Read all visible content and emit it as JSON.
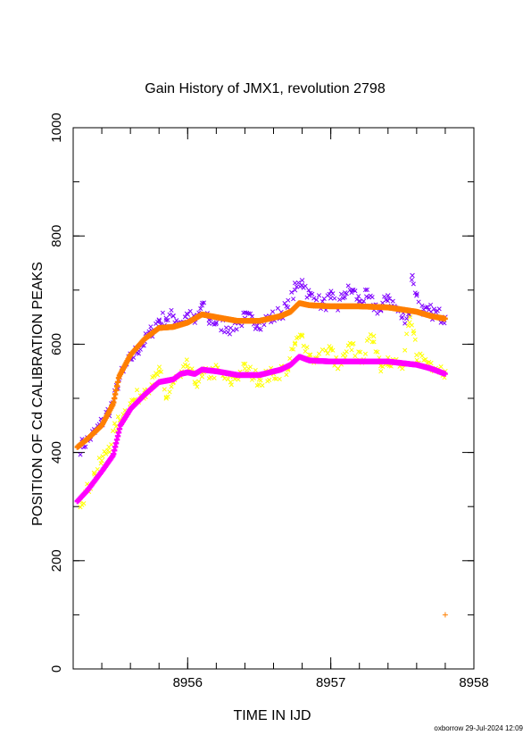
{
  "chart_data": {
    "type": "scatter",
    "title": "Gain History of JMX1, revolution 2798",
    "xlabel": "TIME IN IJD",
    "ylabel": "POSITION OF Cd CALIBRATION PEAKS",
    "xlim": [
      8955.2,
      8958
    ],
    "ylim": [
      0,
      1000
    ],
    "xticks": [
      8956,
      8957,
      8958
    ],
    "yticks": [
      0,
      200,
      400,
      600,
      800,
      1000
    ],
    "x_minor_step": 0.2,
    "y_minor_step": 100,
    "grid": false,
    "series": [
      {
        "marker": "x",
        "color": "#7f00ff",
        "scatter_band": true,
        "points": [
          [
            8955.25,
            410
          ],
          [
            8955.3,
            422
          ],
          [
            8955.35,
            437
          ],
          [
            8955.4,
            455
          ],
          [
            8955.45,
            478
          ],
          [
            8955.48,
            492
          ],
          [
            8955.52,
            535
          ],
          [
            8955.55,
            550
          ],
          [
            8955.6,
            572
          ],
          [
            8955.65,
            590
          ],
          [
            8955.7,
            605
          ],
          [
            8955.75,
            625
          ],
          [
            8955.8,
            645
          ],
          [
            8955.85,
            648
          ],
          [
            8955.9,
            652
          ],
          [
            8955.95,
            640
          ],
          [
            8956.0,
            655
          ],
          [
            8956.05,
            640
          ],
          [
            8956.1,
            672
          ],
          [
            8956.15,
            645
          ],
          [
            8956.2,
            640
          ],
          [
            8956.3,
            630
          ],
          [
            8956.4,
            648
          ],
          [
            8956.5,
            640
          ],
          [
            8956.6,
            650
          ],
          [
            8956.7,
            668
          ],
          [
            8956.75,
            700
          ],
          [
            8956.8,
            718
          ],
          [
            8956.85,
            690
          ],
          [
            8956.9,
            682
          ],
          [
            8956.95,
            672
          ],
          [
            8957.0,
            685
          ],
          [
            8957.05,
            670
          ],
          [
            8957.1,
            695
          ],
          [
            8957.15,
            700
          ],
          [
            8957.2,
            680
          ],
          [
            8957.25,
            688
          ],
          [
            8957.3,
            672
          ],
          [
            8957.35,
            662
          ],
          [
            8957.4,
            690
          ],
          [
            8957.45,
            668
          ],
          [
            8957.5,
            650
          ],
          [
            8957.55,
            655
          ],
          [
            8957.57,
            727
          ],
          [
            8957.6,
            690
          ],
          [
            8957.65,
            655
          ],
          [
            8957.7,
            660
          ],
          [
            8957.8,
            650
          ]
        ]
      },
      {
        "marker": "x",
        "color": "#ffff00",
        "scatter_band": true,
        "points": [
          [
            8955.25,
            310
          ],
          [
            8955.3,
            330
          ],
          [
            8955.35,
            360
          ],
          [
            8955.4,
            385
          ],
          [
            8955.45,
            410
          ],
          [
            8955.5,
            448
          ],
          [
            8955.55,
            470
          ],
          [
            8955.6,
            490
          ],
          [
            8955.7,
            515
          ],
          [
            8955.75,
            525
          ],
          [
            8955.8,
            550
          ],
          [
            8955.85,
            500
          ],
          [
            8955.9,
            530
          ],
          [
            8955.95,
            540
          ],
          [
            8956.0,
            560
          ],
          [
            8956.05,
            530
          ],
          [
            8956.1,
            540
          ],
          [
            8956.2,
            550
          ],
          [
            8956.3,
            530
          ],
          [
            8956.4,
            555
          ],
          [
            8956.5,
            535
          ],
          [
            8956.6,
            545
          ],
          [
            8956.7,
            555
          ],
          [
            8956.75,
            600
          ],
          [
            8956.8,
            615
          ],
          [
            8956.85,
            580
          ],
          [
            8956.9,
            570
          ],
          [
            8957.0,
            590
          ],
          [
            8957.05,
            555
          ],
          [
            8957.1,
            575
          ],
          [
            8957.15,
            600
          ],
          [
            8957.2,
            570
          ],
          [
            8957.3,
            615
          ],
          [
            8957.35,
            560
          ],
          [
            8957.4,
            575
          ],
          [
            8957.5,
            555
          ],
          [
            8957.55,
            640
          ],
          [
            8957.58,
            620
          ],
          [
            8957.6,
            580
          ],
          [
            8957.7,
            565
          ],
          [
            8957.8,
            550
          ]
        ]
      },
      {
        "marker": "+",
        "color": "#ff7f00",
        "scatter_band": false,
        "points": [
          [
            8955.23,
            410
          ],
          [
            8955.3,
            425
          ],
          [
            8955.4,
            450
          ],
          [
            8955.48,
            490
          ],
          [
            8955.52,
            540
          ],
          [
            8955.6,
            580
          ],
          [
            8955.7,
            610
          ],
          [
            8955.8,
            630
          ],
          [
            8955.9,
            632
          ],
          [
            8956.0,
            640
          ],
          [
            8956.1,
            655
          ],
          [
            8956.2,
            650
          ],
          [
            8956.35,
            643
          ],
          [
            8956.5,
            643
          ],
          [
            8956.65,
            652
          ],
          [
            8956.72,
            660
          ],
          [
            8956.78,
            676
          ],
          [
            8956.85,
            672
          ],
          [
            8957.0,
            670
          ],
          [
            8957.2,
            670
          ],
          [
            8957.4,
            668
          ],
          [
            8957.6,
            660
          ],
          [
            8957.7,
            652
          ],
          [
            8957.8,
            647
          ],
          [
            8957.8,
            100
          ]
        ]
      },
      {
        "marker": "+",
        "color": "#ff00ff",
        "scatter_band": false,
        "points": [
          [
            8955.23,
            310
          ],
          [
            8955.3,
            330
          ],
          [
            8955.4,
            365
          ],
          [
            8955.48,
            395
          ],
          [
            8955.53,
            450
          ],
          [
            8955.6,
            480
          ],
          [
            8955.7,
            507
          ],
          [
            8955.8,
            530
          ],
          [
            8955.9,
            535
          ],
          [
            8955.95,
            545
          ],
          [
            8956.0,
            548
          ],
          [
            8956.05,
            545
          ],
          [
            8956.1,
            553
          ],
          [
            8956.2,
            550
          ],
          [
            8956.35,
            543
          ],
          [
            8956.5,
            543
          ],
          [
            8956.65,
            553
          ],
          [
            8956.72,
            562
          ],
          [
            8956.78,
            577
          ],
          [
            8956.85,
            570
          ],
          [
            8957.0,
            568
          ],
          [
            8957.2,
            568
          ],
          [
            8957.4,
            568
          ],
          [
            8957.6,
            562
          ],
          [
            8957.7,
            555
          ],
          [
            8957.8,
            545
          ]
        ]
      }
    ]
  },
  "footer": "oxborrow 29-Jul-2024 12:09"
}
